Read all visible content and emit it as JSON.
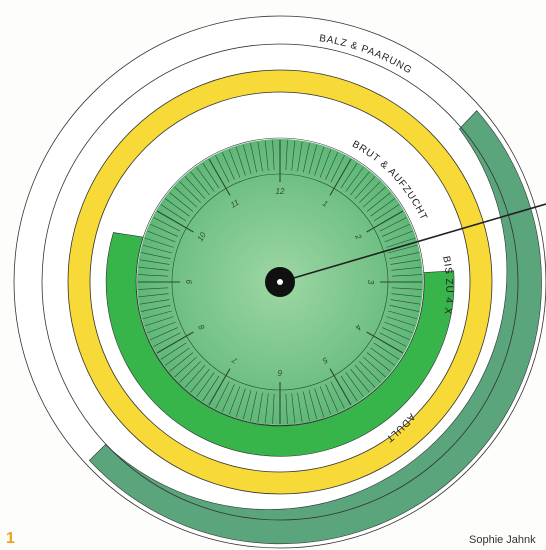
{
  "rings": [
    {
      "id": "balz",
      "label": "BALZ & PAARUNG",
      "color": "#ffffff",
      "accent": "#5aa57c"
    },
    {
      "id": "brut",
      "label": "BRUT & AUFZUCHT",
      "color": "#ffffff",
      "band": "#f7d937"
    },
    {
      "id": "biszu",
      "label": "BIS ZU 4 X",
      "color": "#37b54a"
    },
    {
      "id": "adult",
      "label": "ADULT",
      "color": "#f7d937"
    }
  ],
  "clock": {
    "hours": [
      "1",
      "2",
      "3",
      "4",
      "5",
      "6",
      "7",
      "8",
      "9",
      "10",
      "11",
      "12"
    ],
    "face_color_center": "#9ed7a5",
    "face_color_edge": "#5fb877",
    "tick_color": "#2b4a33",
    "hand_color": "#222222",
    "hub_color": "#111111"
  },
  "footer": {
    "page_number": "1",
    "credit": "Sophie Jahnk"
  }
}
